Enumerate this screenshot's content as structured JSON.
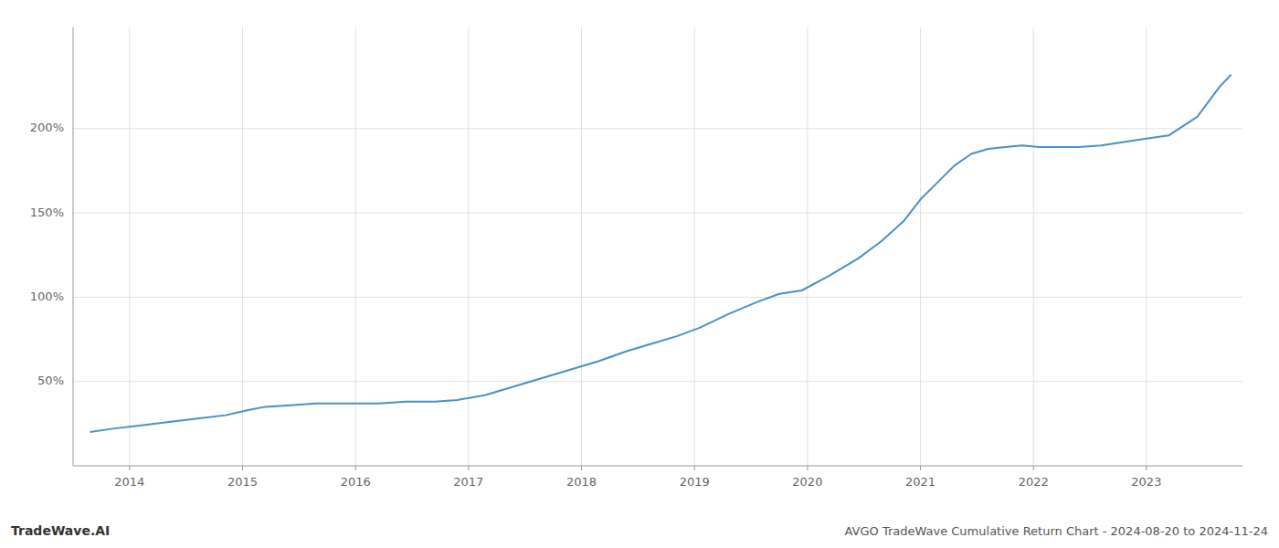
{
  "chart_data": {
    "type": "line",
    "title": "AVGO TradeWave Cumulative Return Chart - 2024-08-20 to 2024-11-24",
    "annotations": [
      "TradeWave.AI"
    ],
    "x": [
      2013.65,
      2013.85,
      2014.1,
      2014.35,
      2014.6,
      2014.85,
      2015.05,
      2015.2,
      2015.45,
      2015.65,
      2015.85,
      2016.0,
      2016.2,
      2016.45,
      2016.7,
      2016.9,
      2017.15,
      2017.4,
      2017.65,
      2017.9,
      2018.15,
      2018.4,
      2018.65,
      2018.85,
      2019.05,
      2019.3,
      2019.55,
      2019.75,
      2019.95,
      2020.2,
      2020.45,
      2020.65,
      2020.85,
      2021.0,
      2021.15,
      2021.3,
      2021.45,
      2021.6,
      2021.75,
      2021.9,
      2022.05,
      2022.2,
      2022.4,
      2022.6,
      2022.8,
      2023.0,
      2023.2,
      2023.45,
      2023.65,
      2023.75
    ],
    "values": [
      20,
      22,
      24,
      26,
      28,
      30,
      33,
      35,
      36,
      37,
      37,
      37,
      37,
      38,
      38,
      39,
      42,
      47,
      52,
      57,
      62,
      68,
      73,
      77,
      82,
      90,
      97,
      102,
      104,
      113,
      123,
      133,
      145,
      158,
      168,
      178,
      185,
      188,
      189,
      190,
      189,
      189,
      189,
      190,
      192,
      194,
      196,
      207,
      225,
      232
    ],
    "color": "#4a90c4",
    "xlim": [
      2013.5,
      2023.85
    ],
    "xticks": [
      2014,
      2015,
      2016,
      2017,
      2018,
      2019,
      2020,
      2021,
      2022,
      2023
    ],
    "ylim": [
      0,
      260
    ],
    "yticks": [
      {
        "value": 50,
        "label": "50%"
      },
      {
        "value": 100,
        "label": "100%"
      },
      {
        "value": 150,
        "label": "150%"
      },
      {
        "value": 200,
        "label": "200%"
      }
    ],
    "grid": true
  }
}
